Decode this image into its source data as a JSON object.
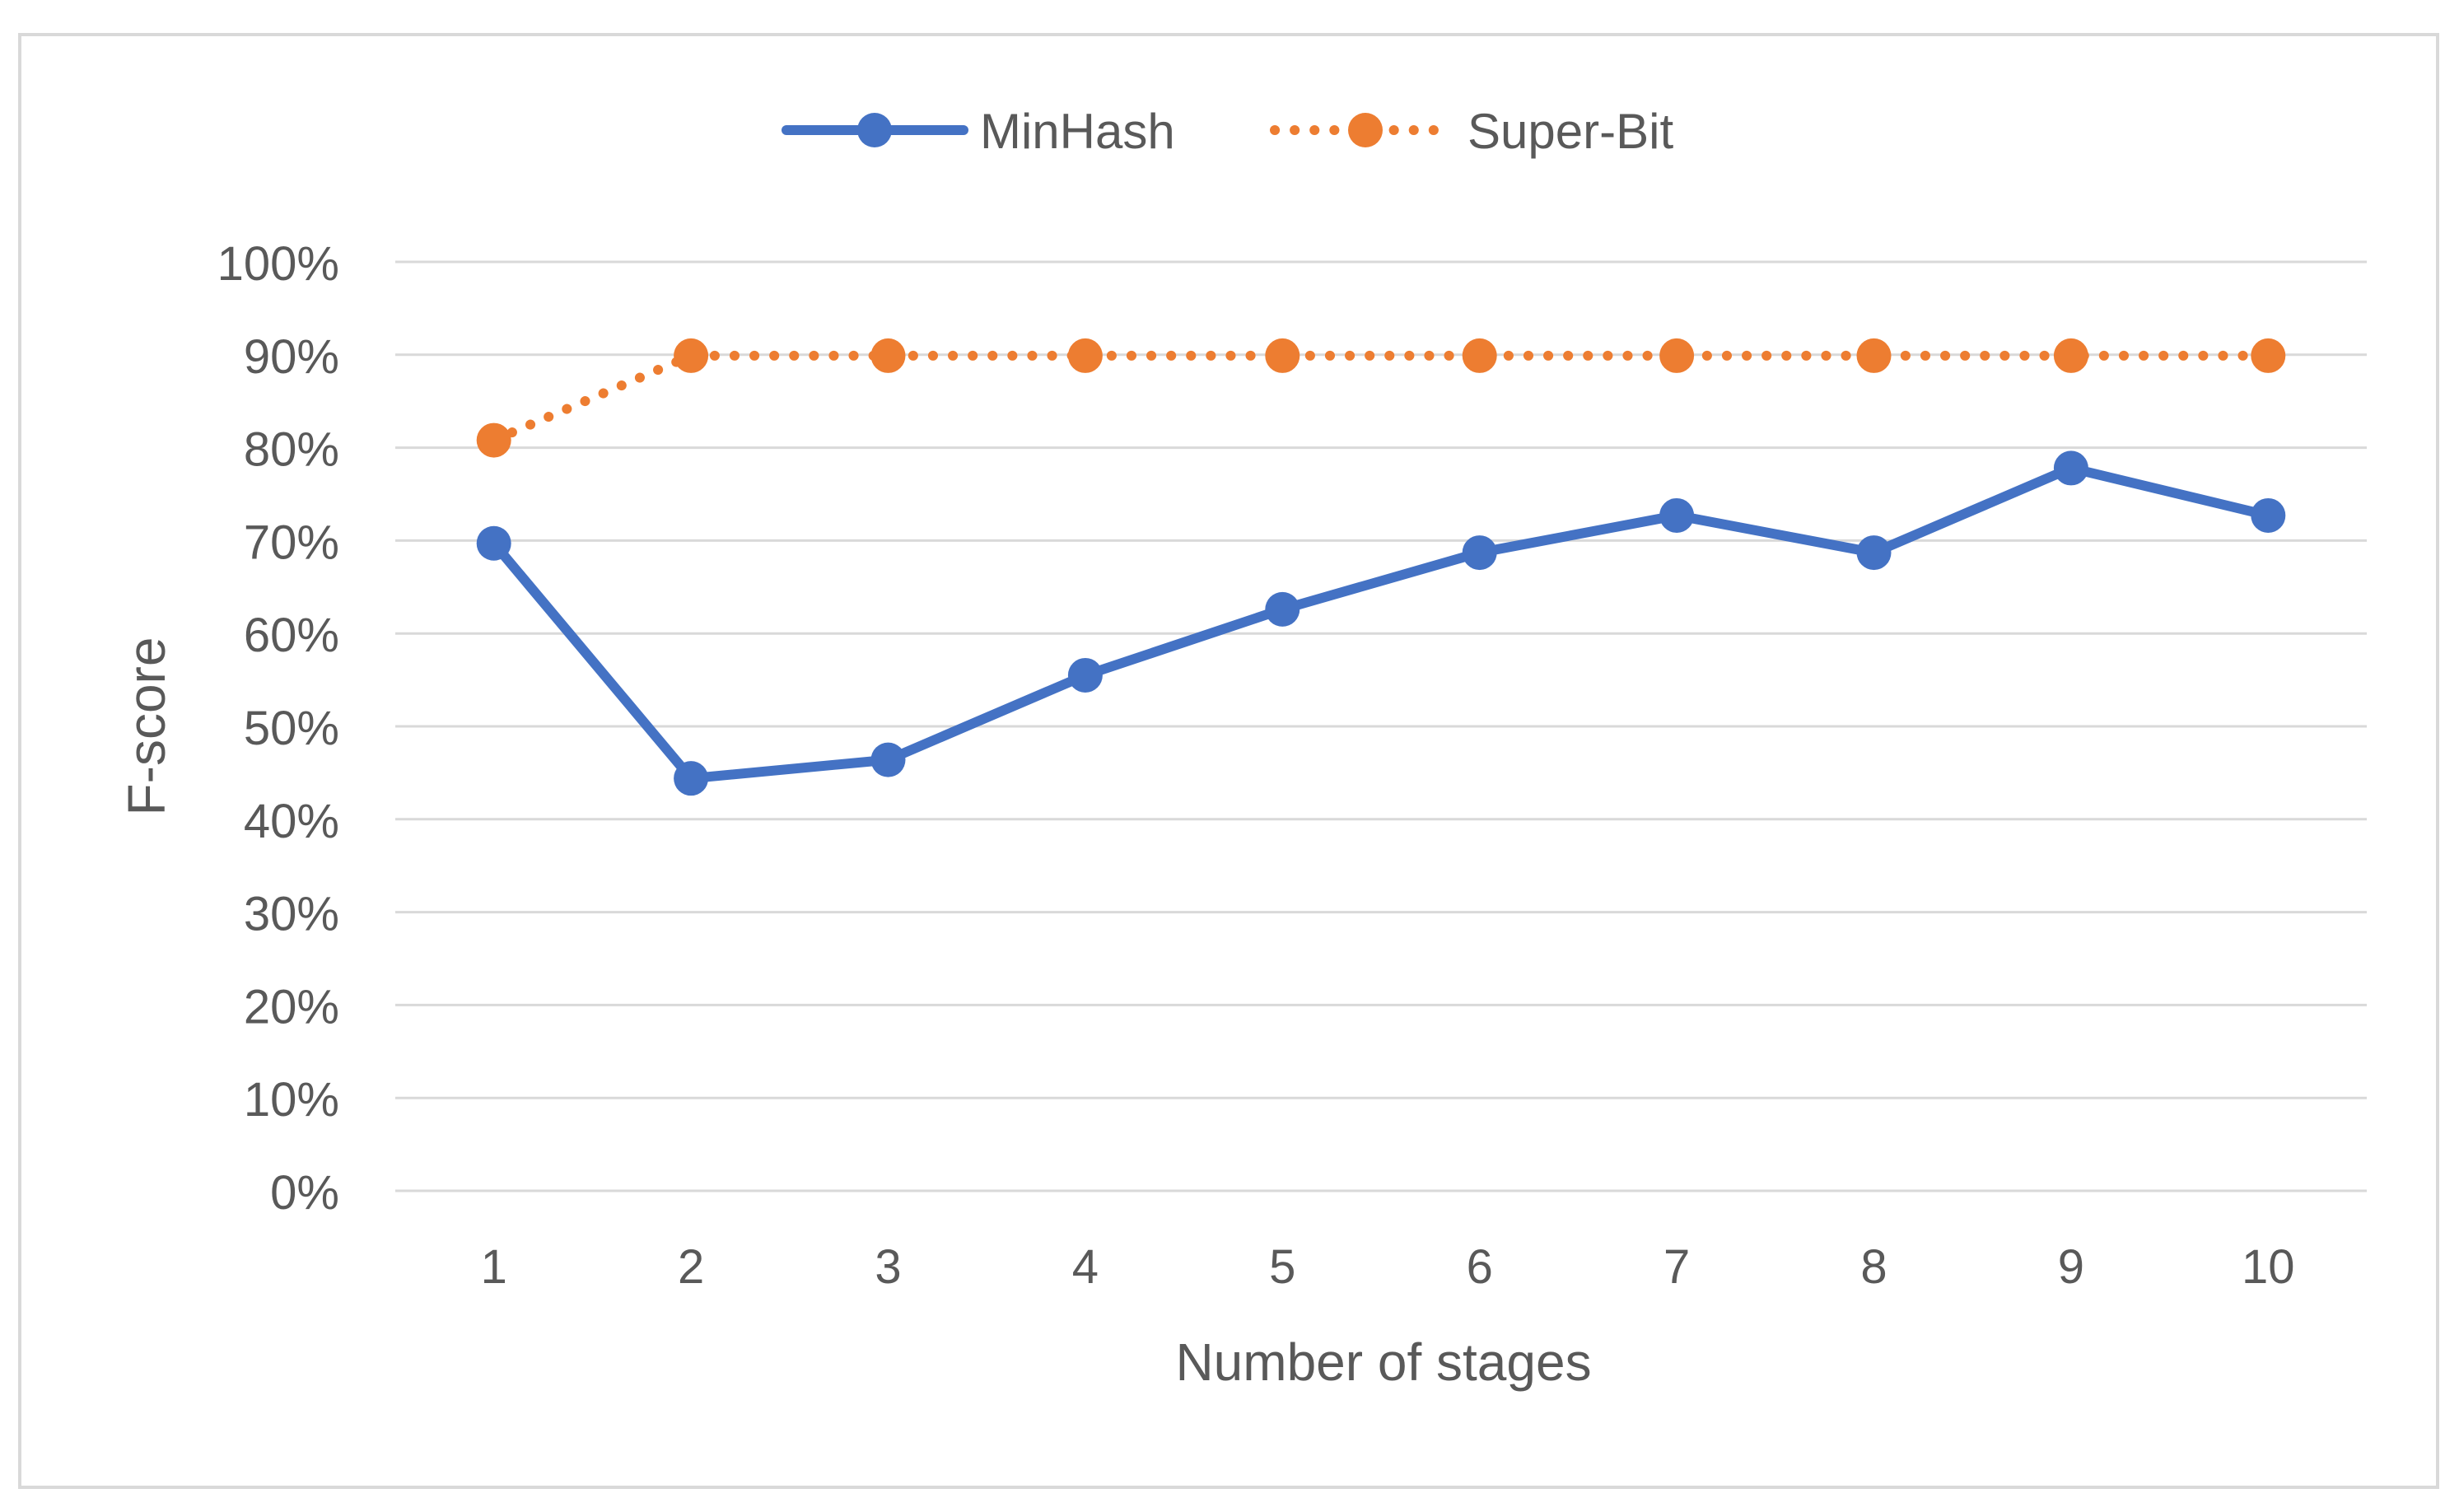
{
  "chart_data": {
    "type": "line",
    "title": "",
    "xlabel": "Number of stages",
    "ylabel": "F-score",
    "categories": [
      "1",
      "2",
      "3",
      "4",
      "5",
      "6",
      "7",
      "8",
      "9",
      "10"
    ],
    "ylim": [
      0,
      100
    ],
    "yticks": [
      "0%",
      "10%",
      "20%",
      "30%",
      "40%",
      "50%",
      "60%",
      "70%",
      "80%",
      "90%",
      "100%"
    ],
    "grid": true,
    "legend_position": "top-center",
    "series": [
      {
        "name": "MinHash",
        "values": [
          69.7,
          44.4,
          46.4,
          55.5,
          62.6,
          68.7,
          72.7,
          68.7,
          77.8,
          72.7
        ],
        "color": "#4472c4",
        "style": "solid"
      },
      {
        "name": "Super-Bit",
        "values": [
          80.8,
          89.9,
          89.9,
          89.9,
          89.9,
          89.9,
          89.9,
          89.9,
          89.9,
          89.9
        ],
        "color": "#ed7d31",
        "style": "dotted"
      }
    ]
  }
}
